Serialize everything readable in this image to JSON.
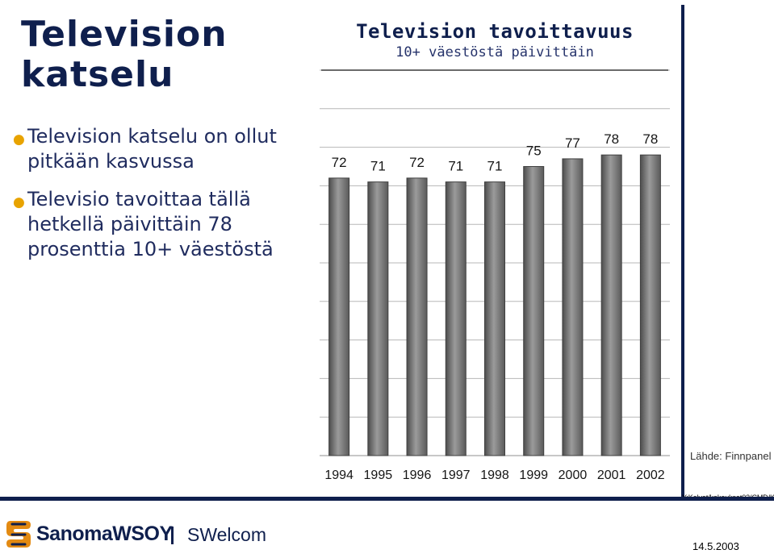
{
  "left_panel": {
    "title_line_1": "Television",
    "title_line_2": "katselu",
    "bullets": [
      {
        "line_1": "Television katselu on ollut",
        "line_2": "pitkään kasvussa"
      },
      {
        "line_1": "Televisio tavoittaa tällä",
        "line_2": "hetkellä päivittäin 78",
        "line_3": "prosenttia 10+ väestöstä"
      }
    ]
  },
  "chart_header": {
    "title": "Television tavoittavuus",
    "subtitle": "10+ väestöstä päivittäin"
  },
  "chart_data": {
    "type": "bar",
    "categories": [
      "1994",
      "1995",
      "1996",
      "1997",
      "1998",
      "1999",
      "2000",
      "2001",
      "2002"
    ],
    "values": [
      72,
      71,
      72,
      71,
      71,
      75,
      77,
      78,
      78
    ],
    "title": "Television tavoittavuus",
    "subtitle": "10+ väestöstä päivittäin",
    "xlabel": "",
    "ylabel": "",
    "ylim": [
      0,
      100
    ],
    "grid": true,
    "data_labels": true,
    "legend": "none",
    "bar_color": "#7d7d7d"
  },
  "footer": {
    "source": "Lähde: Finnpanel",
    "path": "Y:Kalvot/kokoukset03/CMD/Kallioja",
    "company": "SanomaWSOY",
    "division": "SWelcom",
    "date": "14.5.2003"
  },
  "colors": {
    "navy": "#0f1f4d",
    "bullet": "#e8a300",
    "gridline": "#b7b7b7",
    "bar": "#7d7d7d"
  },
  "icons": {
    "logo": "sanoma-s-logo-icon"
  }
}
